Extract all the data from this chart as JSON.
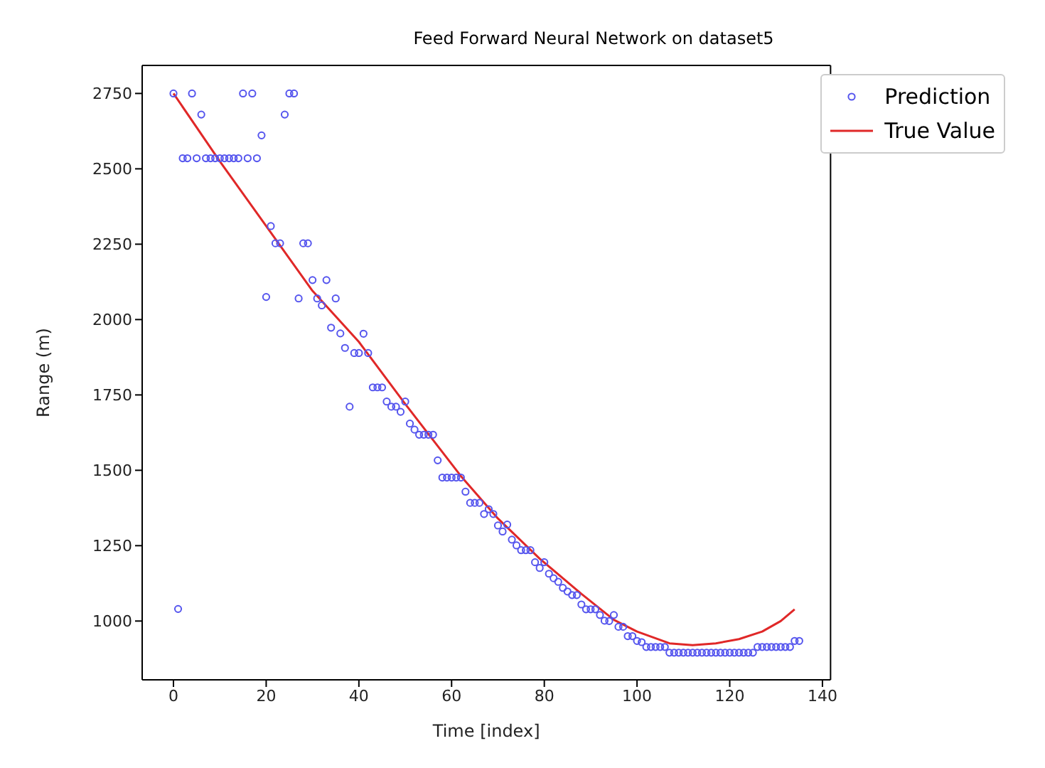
{
  "chart_data": {
    "type": "scatter",
    "title": "Feed Forward Neural Network on dataset5",
    "xlabel": "Time [index]",
    "ylabel": "Range (m)",
    "xlim": [
      -6.75,
      141.75
    ],
    "xticks": [
      0,
      20,
      40,
      60,
      80,
      100,
      120,
      140
    ],
    "ylim": [
      805,
      2843
    ],
    "yticks": [
      1000,
      1250,
      1500,
      1750,
      2000,
      2250,
      2500,
      2750
    ],
    "grid": false,
    "legend": "top right",
    "marker": "circle",
    "series": [
      {
        "name": "Prediction",
        "color": "#5555ee",
        "x": [
          0,
          1,
          2,
          3,
          4,
          5,
          6,
          7,
          8,
          9,
          10,
          11,
          12,
          13,
          14,
          15,
          16,
          17,
          18,
          19,
          20,
          21,
          22,
          23,
          24,
          25,
          26,
          27,
          28,
          29,
          30,
          31,
          32,
          33,
          34,
          35,
          36,
          37,
          38,
          39,
          40,
          41,
          42,
          43,
          44,
          45,
          46,
          47,
          48,
          49,
          50,
          51,
          52,
          53,
          54,
          55,
          56,
          57,
          58,
          59,
          60,
          61,
          62,
          63,
          64,
          65,
          66,
          67,
          68,
          69,
          70,
          71,
          72,
          73,
          74,
          75,
          76,
          77,
          78,
          79,
          80,
          81,
          82,
          83,
          84,
          85,
          86,
          87,
          88,
          89,
          90,
          91,
          92,
          93,
          94,
          95,
          96,
          97,
          98,
          99,
          100,
          101,
          102,
          103,
          104,
          105,
          106,
          107,
          108,
          109,
          110,
          111,
          112,
          113,
          114,
          115,
          116,
          117,
          118,
          119,
          120,
          121,
          122,
          123,
          124,
          125,
          126,
          127,
          128,
          129,
          130,
          131,
          132,
          133,
          134,
          135
        ],
        "values": [
          2750,
          1040,
          2535,
          2535,
          2750,
          2535,
          2680,
          2535,
          2535,
          2535,
          2535,
          2535,
          2535,
          2535,
          2535,
          2750,
          2535,
          2750,
          2535,
          2611,
          2075,
          2310,
          2253,
          2253,
          2680,
          2750,
          2750,
          2070,
          2253,
          2253,
          2131,
          2070,
          2047,
          2131,
          1973,
          2070,
          1954,
          1906,
          1711,
          1889,
          1889,
          1953,
          1889,
          1775,
          1775,
          1775,
          1728,
          1711,
          1711,
          1694,
          1728,
          1655,
          1635,
          1618,
          1618,
          1618,
          1618,
          1533,
          1476,
          1476,
          1476,
          1476,
          1476,
          1429,
          1392,
          1392,
          1392,
          1355,
          1371,
          1355,
          1317,
          1297,
          1320,
          1270,
          1251,
          1235,
          1235,
          1235,
          1195,
          1176,
          1195,
          1157,
          1142,
          1130,
          1110,
          1098,
          1086,
          1086,
          1055,
          1039,
          1039,
          1039,
          1020,
          1001,
          1000,
          1020,
          981,
          981,
          950,
          950,
          934,
          930,
          914,
          914,
          914,
          914,
          914,
          895,
          895,
          895,
          895,
          895,
          895,
          895,
          895,
          895,
          895,
          895,
          895,
          895,
          895,
          895,
          895,
          895,
          895,
          895,
          914,
          914,
          914,
          914,
          914,
          914,
          914,
          914,
          934,
          934
        ]
      },
      {
        "name": "True Value",
        "type": "line",
        "color": "#e02828",
        "marker": "none",
        "line_style": "solid",
        "x": [
          0,
          10,
          20,
          30,
          40,
          50,
          62,
          70,
          79,
          88,
          95,
          100,
          107,
          112,
          117,
          122,
          127,
          131,
          134
        ],
        "values": [
          2750,
          2525,
          2310,
          2095,
          1926,
          1720,
          1481,
          1340,
          1207,
          1090,
          1004,
          965,
          926,
          920,
          926,
          940,
          965,
          1000,
          1039
        ]
      }
    ]
  }
}
